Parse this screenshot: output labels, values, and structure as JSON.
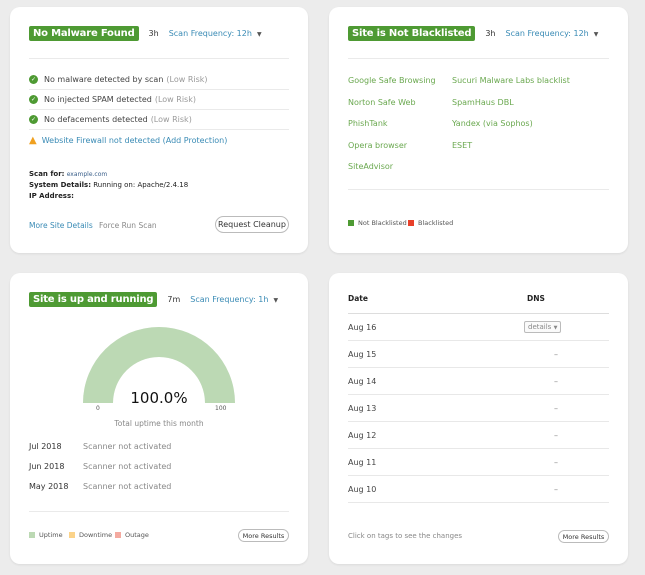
{
  "malware": {
    "badge": "No Malware Found",
    "ago": "3h",
    "frequency": "Scan Frequency: 12h",
    "checks": [
      {
        "text": "No malware detected by scan",
        "risk": "(Low Risk)"
      },
      {
        "text": "No injected SPAM detected",
        "risk": "(Low Risk)"
      },
      {
        "text": "No defacements detected",
        "risk": "(Low Risk)"
      }
    ],
    "warning": "Website Firewall not detected (Add Protection)",
    "scan_for_label": "Scan for:",
    "scan_for": "example.com",
    "system_label": "System Details:",
    "system": "Running on: Apache/2.4.18",
    "ip_label": "IP Address:",
    "more_details": "More Site Details",
    "force_scan": "Force Run Scan",
    "cleanup": "Request Cleanup"
  },
  "blacklist": {
    "badge": "Site is Not Blacklisted",
    "ago": "3h",
    "frequency": "Scan Frequency: 12h",
    "col1": [
      "Google Safe Browsing",
      "Norton Safe Web",
      "PhishTank",
      "Opera browser",
      "SiteAdvisor"
    ],
    "col2": [
      "Sucuri Malware Labs blacklist",
      "SpamHaus DBL",
      "Yandex (via Sophos)",
      "ESET"
    ],
    "legend": [
      {
        "label": "Not Blacklisted",
        "color": "#4e9a33"
      },
      {
        "label": "Blacklisted",
        "color": "#e8402a"
      }
    ]
  },
  "uptime": {
    "badge": "Site is up and running",
    "ago": "7m",
    "frequency": "Scan Frequency: 1h",
    "gauge": {
      "value": 100.0,
      "label": "100.0%",
      "min": "0",
      "max": "100",
      "color": "#bcd9b4"
    },
    "caption": "Total uptime this month",
    "months": [
      {
        "month": "Jul 2018",
        "status": "Scanner not activated"
      },
      {
        "month": "Jun 2018",
        "status": "Scanner not activated"
      },
      {
        "month": "May 2018",
        "status": "Scanner not activated"
      }
    ],
    "legend": [
      {
        "label": "Uptime",
        "color": "#bcd9b4"
      },
      {
        "label": "Downtime",
        "color": "#fbd38a"
      },
      {
        "label": "Outage",
        "color": "#f4aaa0"
      }
    ],
    "more": "More Results"
  },
  "dns": {
    "col_date": "Date",
    "col_dns": "DNS",
    "details": "details",
    "rows": [
      {
        "date": "Aug 16",
        "dns": ""
      },
      {
        "date": "Aug 15",
        "dns": "–"
      },
      {
        "date": "Aug 14",
        "dns": "–"
      },
      {
        "date": "Aug 13",
        "dns": "–"
      },
      {
        "date": "Aug 12",
        "dns": "–"
      },
      {
        "date": "Aug 11",
        "dns": "–"
      },
      {
        "date": "Aug 10",
        "dns": "–"
      }
    ],
    "hint": "Click on tags to see the changes",
    "more": "More Results"
  }
}
